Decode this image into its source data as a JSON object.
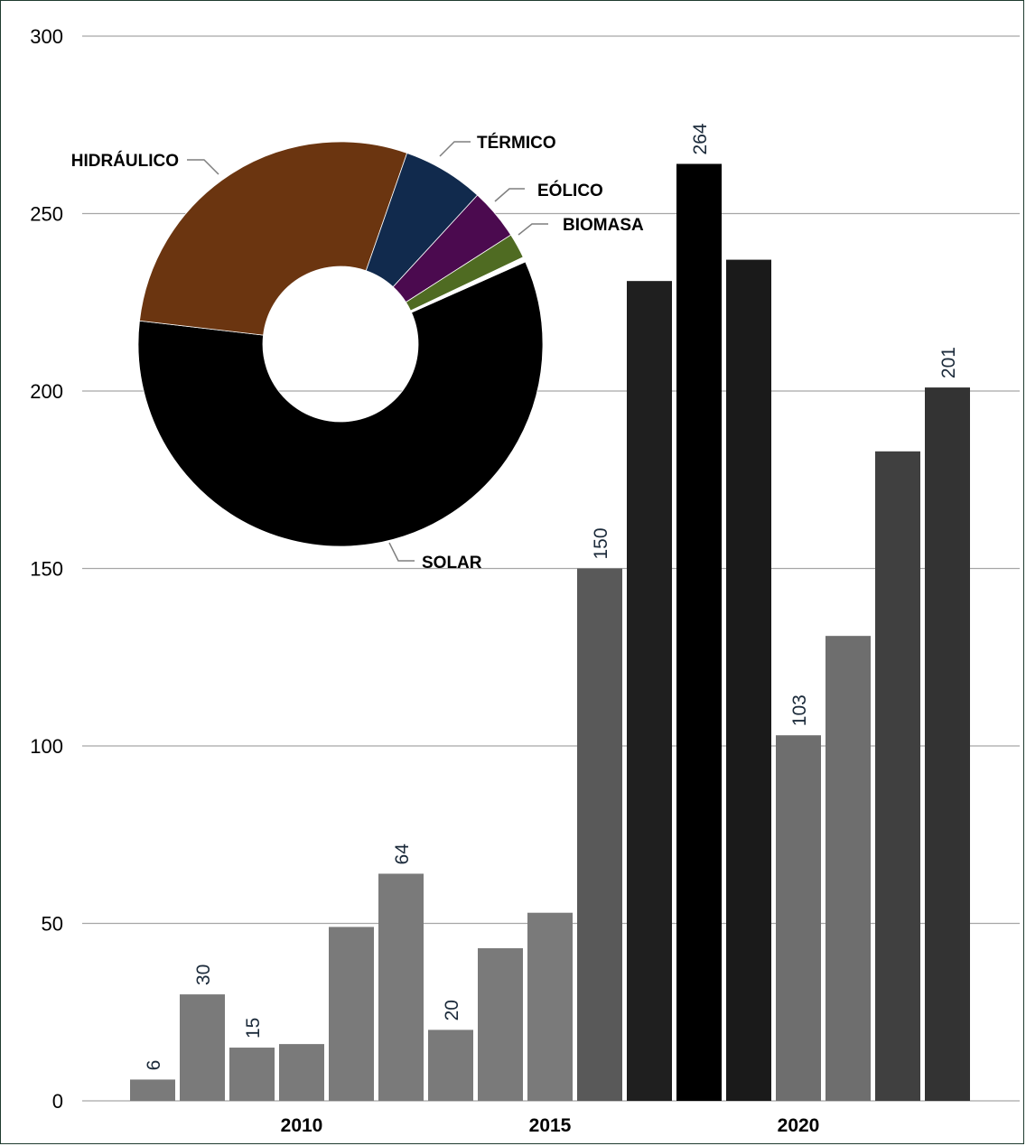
{
  "chart_data": [
    {
      "type": "bar",
      "x": [
        2007,
        2008,
        2009,
        2010,
        2011,
        2012,
        2013,
        2014,
        2015,
        2016,
        2017,
        2018,
        2019,
        2020,
        2021,
        2022,
        2023
      ],
      "values": [
        6,
        30,
        15,
        16,
        49,
        64,
        20,
        43,
        53,
        150,
        231,
        264,
        237,
        103,
        131,
        183,
        201
      ],
      "bar_colors": [
        "#7a7a7a",
        "#7a7a7a",
        "#7a7a7a",
        "#7a7a7a",
        "#7a7a7a",
        "#7a7a7a",
        "#7a7a7a",
        "#7a7a7a",
        "#7a7a7a",
        "#595959",
        "#1f1f1f",
        "#000000",
        "#1a1a1a",
        "#6e6e6e",
        "#6e6e6e",
        "#404040",
        "#333333"
      ],
      "data_labels": [
        {
          "index": 0,
          "text": "6"
        },
        {
          "index": 1,
          "text": "30"
        },
        {
          "index": 2,
          "text": "15"
        },
        {
          "index": 5,
          "text": "64"
        },
        {
          "index": 6,
          "text": "20"
        },
        {
          "index": 9,
          "text": "150"
        },
        {
          "index": 11,
          "text": "264"
        },
        {
          "index": 13,
          "text": "103"
        },
        {
          "index": 16,
          "text": "201"
        }
      ],
      "y_ticks": [
        "0",
        "50",
        "100",
        "150",
        "200",
        "250",
        "300"
      ],
      "x_ticks": [
        {
          "value": 2010,
          "label": "2010"
        },
        {
          "value": 2015,
          "label": "2015"
        },
        {
          "value": 2020,
          "label": "2020"
        }
      ],
      "ylim": [
        0,
        300
      ],
      "grid": true,
      "title": "",
      "xlabel": "",
      "ylabel": ""
    },
    {
      "type": "pie",
      "donut": true,
      "slices": [
        {
          "label": "SOLAR",
          "value": 58.5,
          "color": "#000000"
        },
        {
          "label": "HIDRÁULICO",
          "value": 28.5,
          "color": "#6b3510"
        },
        {
          "label": "TÉRMICO",
          "value": 6.5,
          "color": "#112a4d"
        },
        {
          "label": "EÓLICO",
          "value": 4.1,
          "color": "#4b0a4f"
        },
        {
          "label": "BIOMASA",
          "value": 2.0,
          "color": "#4f6b22"
        },
        {
          "label": "",
          "value": 0.4,
          "color": "#ffffff"
        }
      ]
    }
  ]
}
